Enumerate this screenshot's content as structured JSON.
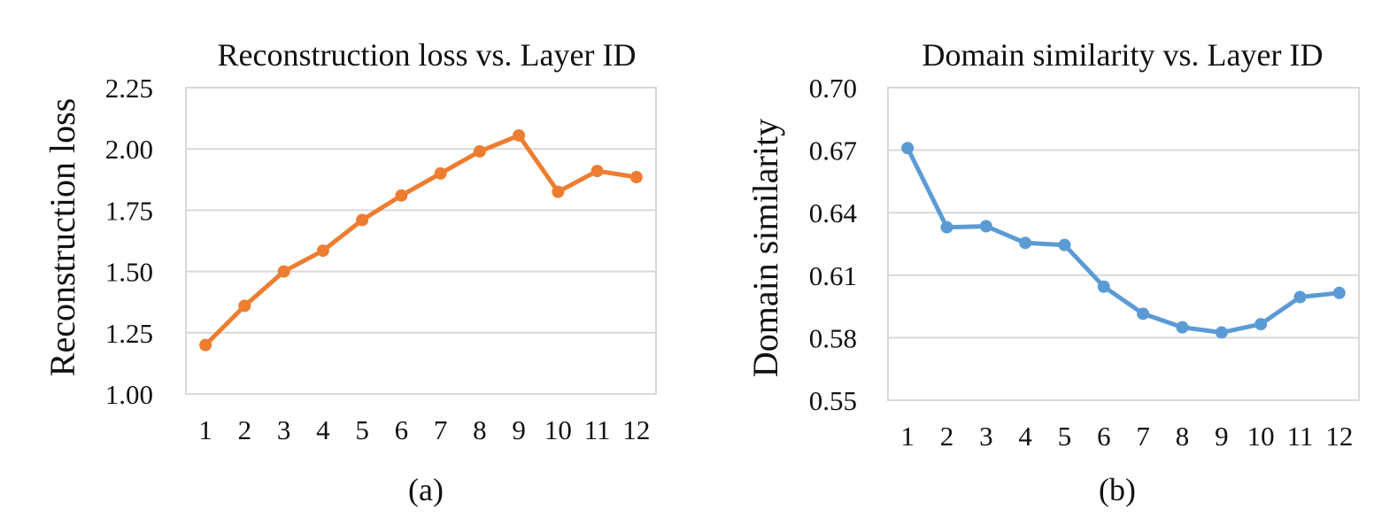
{
  "chart_data": [
    {
      "type": "line",
      "panel": "(a)",
      "title": "Reconstruction loss vs. Layer ID",
      "xlabel": "",
      "ylabel": "Reconstruction loss",
      "categories": [
        "1",
        "2",
        "3",
        "4",
        "5",
        "6",
        "7",
        "8",
        "9",
        "10",
        "11",
        "12"
      ],
      "series": [
        {
          "name": "Reconstruction loss",
          "values": [
            1.2,
            1.36,
            1.5,
            1.585,
            1.71,
            1.81,
            1.9,
            1.99,
            2.055,
            1.825,
            1.91,
            1.885
          ]
        }
      ],
      "ylim": [
        1.0,
        2.25
      ],
      "yticks": [
        "1.00",
        "1.25",
        "1.50",
        "1.75",
        "2.00",
        "2.25"
      ],
      "grid": true,
      "color": "#ED7D31"
    },
    {
      "type": "line",
      "panel": "(b)",
      "title": "Domain similarity vs. Layer ID",
      "xlabel": "",
      "ylabel": "Domain similarity",
      "categories": [
        "1",
        "2",
        "3",
        "4",
        "5",
        "6",
        "7",
        "8",
        "9",
        "10",
        "11",
        "12"
      ],
      "series": [
        {
          "name": "Domain similarity",
          "values": [
            0.671,
            0.633,
            0.6335,
            0.6255,
            0.6245,
            0.6045,
            0.5915,
            0.585,
            0.5825,
            0.5865,
            0.5995,
            0.6015
          ]
        }
      ],
      "ylim": [
        0.55,
        0.7
      ],
      "yticks": [
        "0.55",
        "0.58",
        "0.61",
        "0.64",
        "0.67",
        "0.70"
      ],
      "grid": true,
      "color": "#5B9BD5"
    }
  ]
}
